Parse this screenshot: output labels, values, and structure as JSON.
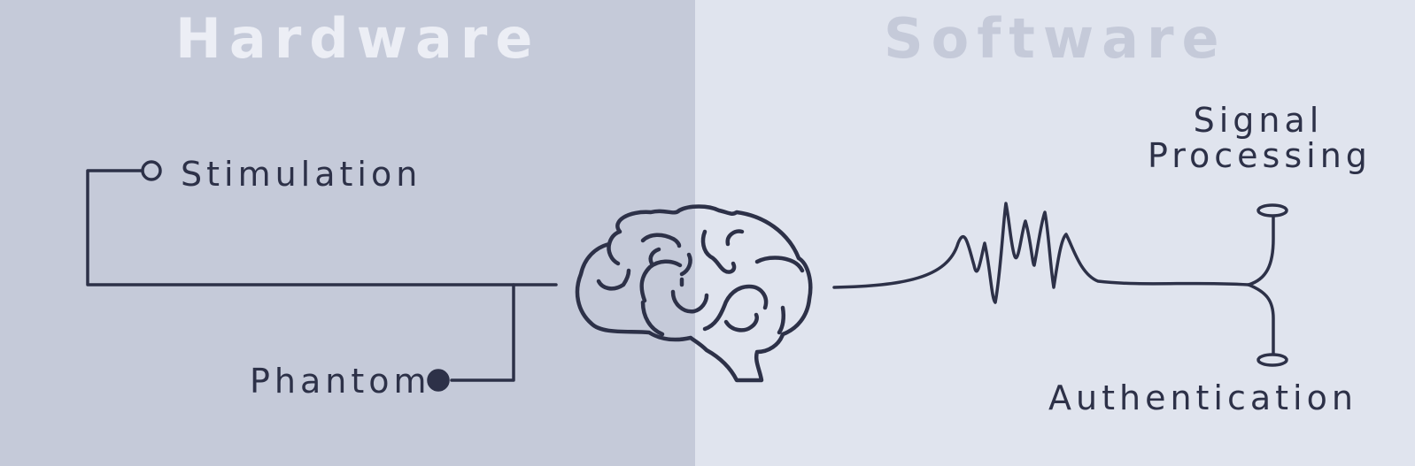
{
  "colors": {
    "hardware_bg": "#c5cad9",
    "software_bg": "#e0e4ee",
    "title_text": "#eceef5",
    "ink": "#2d3148"
  },
  "sections": {
    "hardware": {
      "title": "Hardware"
    },
    "software": {
      "title": "Software"
    }
  },
  "nodes": {
    "stimulation": {
      "label": "Stimulation",
      "marker": "open-circle"
    },
    "phantom": {
      "label": "Phantom",
      "marker": "filled-circle"
    },
    "signal_processing": {
      "label_line1": "Signal",
      "label_line2": "Processing",
      "marker": "open-ellipse"
    },
    "authentication": {
      "label": "Authentication",
      "marker": "open-ellipse"
    }
  },
  "center_icon": "brain-icon",
  "signal_icon": "waveform-icon"
}
